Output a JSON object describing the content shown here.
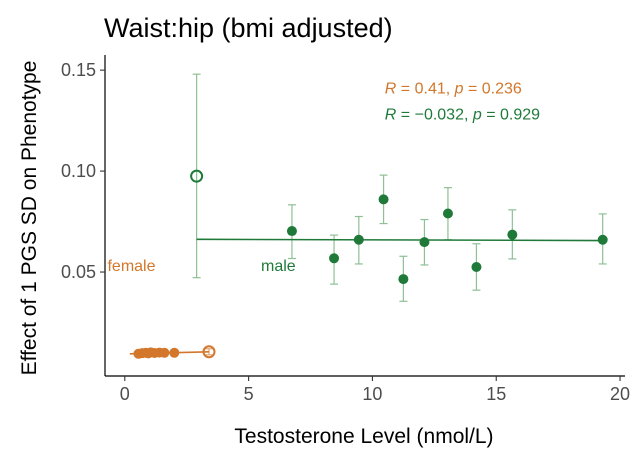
{
  "chart_data": {
    "type": "scatter",
    "title": "Waist:hip (bmi adjusted)",
    "xlabel": "Testosterone Level (nmol/L)",
    "ylabel": "Effect of 1 PGS SD on Phenotype",
    "xlim": [
      -0.8,
      20.2
    ],
    "ylim": [
      -0.0015,
      0.1575
    ],
    "xticks": [
      0,
      5,
      10,
      15,
      20
    ],
    "yticks": [
      0.05,
      0.1,
      0.15
    ],
    "ytick_labels": [
      "0.05",
      "0.10",
      "0.15"
    ],
    "grid": false,
    "annotations": [
      {
        "text_parts": [
          {
            "t": "R",
            "italic": true
          },
          {
            "t": " = 0.41, "
          },
          {
            "t": "p",
            "italic": true
          },
          {
            "t": " = 0.236"
          }
        ],
        "group": "female",
        "x": 10.5,
        "y": 0.1385
      },
      {
        "text_parts": [
          {
            "t": "R",
            "italic": true
          },
          {
            "t": " = −0.032, "
          },
          {
            "t": "p",
            "italic": true
          },
          {
            "t": " = 0.929"
          }
        ],
        "group": "male",
        "x": 10.5,
        "y": 0.1255
      }
    ],
    "series": [
      {
        "name": "female",
        "color": "#d2772b",
        "error_color": "#e3a673",
        "label_pos": [
          -0.7,
          0.0505
        ],
        "fit": {
          "x": [
            0.2,
            3.4
          ],
          "y": [
            0.0095,
            0.0105
          ]
        },
        "points": [
          {
            "x": 0.55,
            "y": 0.0095,
            "lo": 0.0085,
            "hi": 0.0105
          },
          {
            "x": 0.7,
            "y": 0.0098,
            "lo": 0.0088,
            "hi": 0.0108
          },
          {
            "x": 0.85,
            "y": 0.01,
            "lo": 0.009,
            "hi": 0.011
          },
          {
            "x": 0.95,
            "y": 0.0097,
            "lo": 0.0087,
            "hi": 0.0107
          },
          {
            "x": 1.05,
            "y": 0.0102,
            "lo": 0.0092,
            "hi": 0.0112
          },
          {
            "x": 1.2,
            "y": 0.0099,
            "lo": 0.0089,
            "hi": 0.0109
          },
          {
            "x": 1.4,
            "y": 0.0101,
            "lo": 0.0091,
            "hi": 0.0111
          },
          {
            "x": 1.6,
            "y": 0.01,
            "lo": 0.009,
            "hi": 0.011
          },
          {
            "x": 2.0,
            "y": 0.01,
            "lo": 0.009,
            "hi": 0.011
          },
          {
            "x": 3.4,
            "y": 0.0105,
            "lo": 0.009,
            "hi": 0.012,
            "open": true
          }
        ]
      },
      {
        "name": "male",
        "color": "#1f7a3a",
        "error_color": "#8fbf96",
        "label_pos": [
          5.5,
          0.0505
        ],
        "fit": {
          "x": [
            2.9,
            19.3
          ],
          "y": [
            0.0662,
            0.0656
          ]
        },
        "points": [
          {
            "x": 2.9,
            "y": 0.0975,
            "lo": 0.0472,
            "hi": 0.148,
            "open": true
          },
          {
            "x": 6.75,
            "y": 0.0703,
            "lo": 0.0567,
            "hi": 0.0833
          },
          {
            "x": 8.45,
            "y": 0.0568,
            "lo": 0.044,
            "hi": 0.0683
          },
          {
            "x": 9.45,
            "y": 0.066,
            "lo": 0.054,
            "hi": 0.0775
          },
          {
            "x": 10.45,
            "y": 0.086,
            "lo": 0.074,
            "hi": 0.098
          },
          {
            "x": 11.25,
            "y": 0.0465,
            "lo": 0.0355,
            "hi": 0.0578
          },
          {
            "x": 12.1,
            "y": 0.0648,
            "lo": 0.0535,
            "hi": 0.076
          },
          {
            "x": 13.05,
            "y": 0.079,
            "lo": 0.066,
            "hi": 0.0918
          },
          {
            "x": 14.2,
            "y": 0.0525,
            "lo": 0.041,
            "hi": 0.064
          },
          {
            "x": 15.65,
            "y": 0.0685,
            "lo": 0.0565,
            "hi": 0.0808
          },
          {
            "x": 19.3,
            "y": 0.066,
            "lo": 0.054,
            "hi": 0.0788
          }
        ]
      }
    ]
  }
}
